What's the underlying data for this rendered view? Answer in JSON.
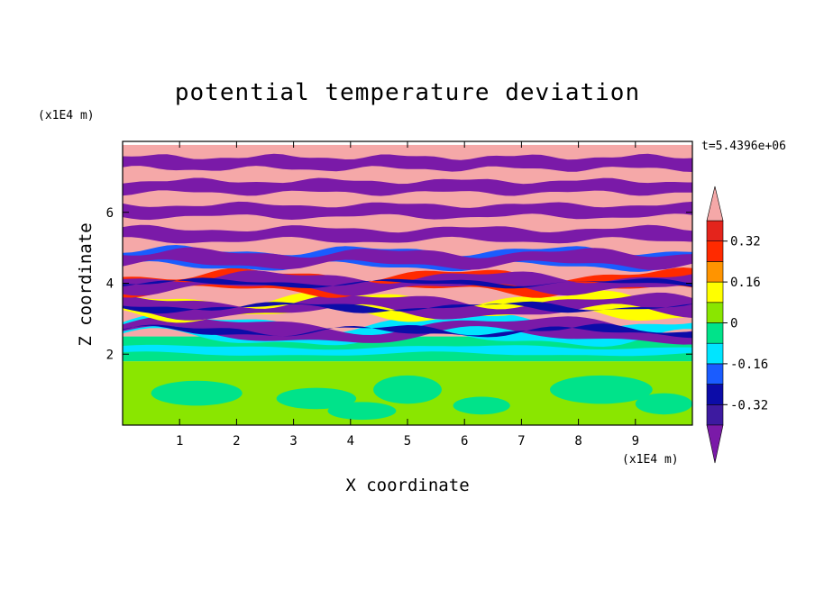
{
  "chart_data": {
    "type": "heatmap",
    "title": "potential temperature deviation",
    "xlabel": "X coordinate",
    "ylabel": "Z coordinate",
    "x_unit": "(x1E4 m)",
    "y_unit": "(x1E4 m)",
    "time_label": "t=5.4396e+06",
    "xlim": [
      0,
      10
    ],
    "ylim": [
      0,
      8
    ],
    "x_ticks": [
      "1",
      "2",
      "3",
      "4",
      "5",
      "6",
      "7",
      "8",
      "9"
    ],
    "y_ticks": [
      "2",
      "4",
      "6"
    ],
    "colorbar": {
      "levels": [
        -0.4,
        -0.32,
        -0.24,
        -0.16,
        -0.08,
        0,
        0.08,
        0.16,
        0.24,
        0.32,
        0.4
      ],
      "tick_labels": [
        "0.32",
        "0.16",
        "0",
        "-0.16",
        "-0.32"
      ],
      "colors": [
        "#7a1aa8",
        "#3d1aa0",
        "#0c0ca8",
        "#1a5cff",
        "#00e5ff",
        "#00e38a",
        "#8ae600",
        "#ffff00",
        "#ff9400",
        "#ff2a00",
        "#e4241c",
        "#f5a8a8"
      ]
    },
    "bands": [
      {
        "z_from": 0.0,
        "z_to": 1.8,
        "value": 0.04,
        "color": "#8ae600"
      },
      {
        "z_from": 1.8,
        "z_to": 2.5,
        "value": -0.04,
        "color": "#00e38a"
      },
      {
        "z_from": 2.5,
        "z_to": 7.9,
        "pattern": "alternating",
        "values": [
          0.4,
          -0.4
        ]
      }
    ]
  }
}
